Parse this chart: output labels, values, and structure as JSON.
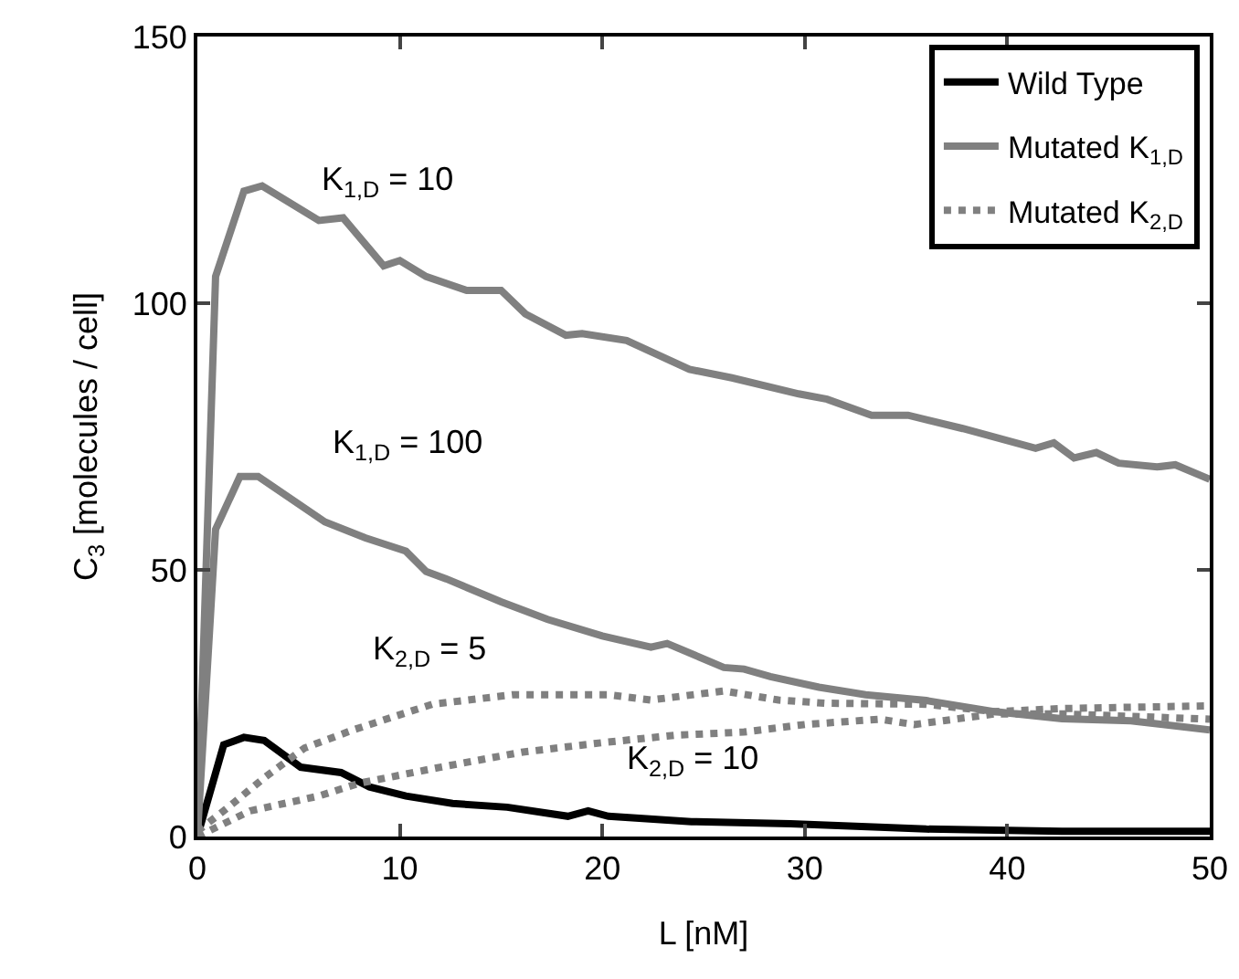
{
  "chart_data": {
    "type": "line",
    "xlabel": "L [nM]",
    "ylabel": "C$_{3}$ [molecules / cell]",
    "xlim": [
      0,
      50
    ],
    "xticks": [
      0,
      10,
      20,
      30,
      40,
      50
    ],
    "ylim": [
      0,
      150
    ],
    "yticks": [
      0,
      50,
      100,
      150
    ],
    "grid": false,
    "legend": "top right",
    "marker": "none",
    "series": [
      {
        "name": "Wild Type",
        "color": "#000000",
        "line_style": "solid",
        "x": [
          0,
          1.3,
          2.3,
          3.3,
          5.1,
          7.1,
          8.5,
          10.3,
          12.6,
          15.3,
          18.3,
          19.3,
          20.3,
          24.4,
          29.3,
          36,
          42.7,
          50
        ],
        "values": [
          0,
          17.2,
          18.6,
          18,
          13,
          12,
          9.3,
          7.6,
          6.2,
          5.5,
          3.8,
          4.8,
          3.8,
          2.8,
          2.4,
          1.4,
          1,
          1
        ]
      },
      {
        "name": "Mutated K$_{1,D}$",
        "color": "#808080",
        "line_style": "solid",
        "x": [
          0,
          0.9,
          2.3,
          3.2,
          6,
          7.2,
          9.2,
          10,
          11.3,
          13.3,
          15,
          16.2,
          18.2,
          19,
          21.2,
          24.3,
          26.4,
          29.7,
          31.1,
          33.3,
          35.1,
          37.8,
          41.4,
          42.3,
          43.3,
          44.4,
          45.5,
          47.4,
          48.3,
          50
        ],
        "values": [
          0,
          105,
          121,
          122,
          115.5,
          116,
          107,
          108,
          105,
          102.4,
          102.4,
          98,
          94,
          94.3,
          93,
          87.6,
          86,
          83,
          82,
          79,
          79,
          76.5,
          72.8,
          73.8,
          71,
          72,
          70,
          69.3,
          69.7,
          67
        ]
      },
      {
        "color": "#808080",
        "line_style": "solid",
        "x": [
          0,
          0.9,
          2.1,
          3,
          6.3,
          8.3,
          10.3,
          11.3,
          12.3,
          15,
          17.3,
          20,
          22.4,
          23.2,
          26,
          27,
          28.3,
          30.7,
          33,
          36,
          39.4,
          42.7,
          46.1,
          50
        ],
        "values": [
          0,
          57.6,
          67.5,
          67.5,
          59,
          56,
          53.5,
          49.7,
          48.3,
          44,
          40.7,
          37.6,
          35.5,
          36.2,
          31.7,
          31.4,
          30,
          28,
          26.6,
          25.5,
          23.4,
          22.1,
          21.7,
          20
        ]
      },
      {
        "name": "Mutated K$_{2,D}$",
        "color": "#808080",
        "line_style": "dotted",
        "x": [
          0,
          1.3,
          3.3,
          5.3,
          7.7,
          11.6,
          15.6,
          20.3,
          22.4,
          26,
          28.7,
          31,
          36,
          39.4,
          42.7,
          50
        ],
        "values": [
          1,
          4.8,
          11,
          16.6,
          20,
          24.8,
          26.6,
          26.6,
          25.6,
          27.3,
          25.6,
          25,
          24.8,
          23.4,
          24,
          24.5
        ]
      },
      {
        "color": "#808080",
        "line_style": "dotted",
        "x": [
          0,
          2.6,
          6,
          8,
          12,
          16,
          20,
          23.6,
          27,
          30,
          33.7,
          35.4,
          39.4,
          42.7,
          50
        ],
        "values": [
          0,
          4.8,
          7.6,
          10,
          13,
          15.8,
          17.6,
          19,
          19.6,
          21,
          22,
          21,
          23,
          23,
          22
        ]
      }
    ],
    "annotations": [
      "K$_{1,D}$ = 10",
      "K$_{1,D}$ = 100",
      "K$_{2,D}$ = 5",
      "K$_{2,D}$ = 10"
    ]
  }
}
